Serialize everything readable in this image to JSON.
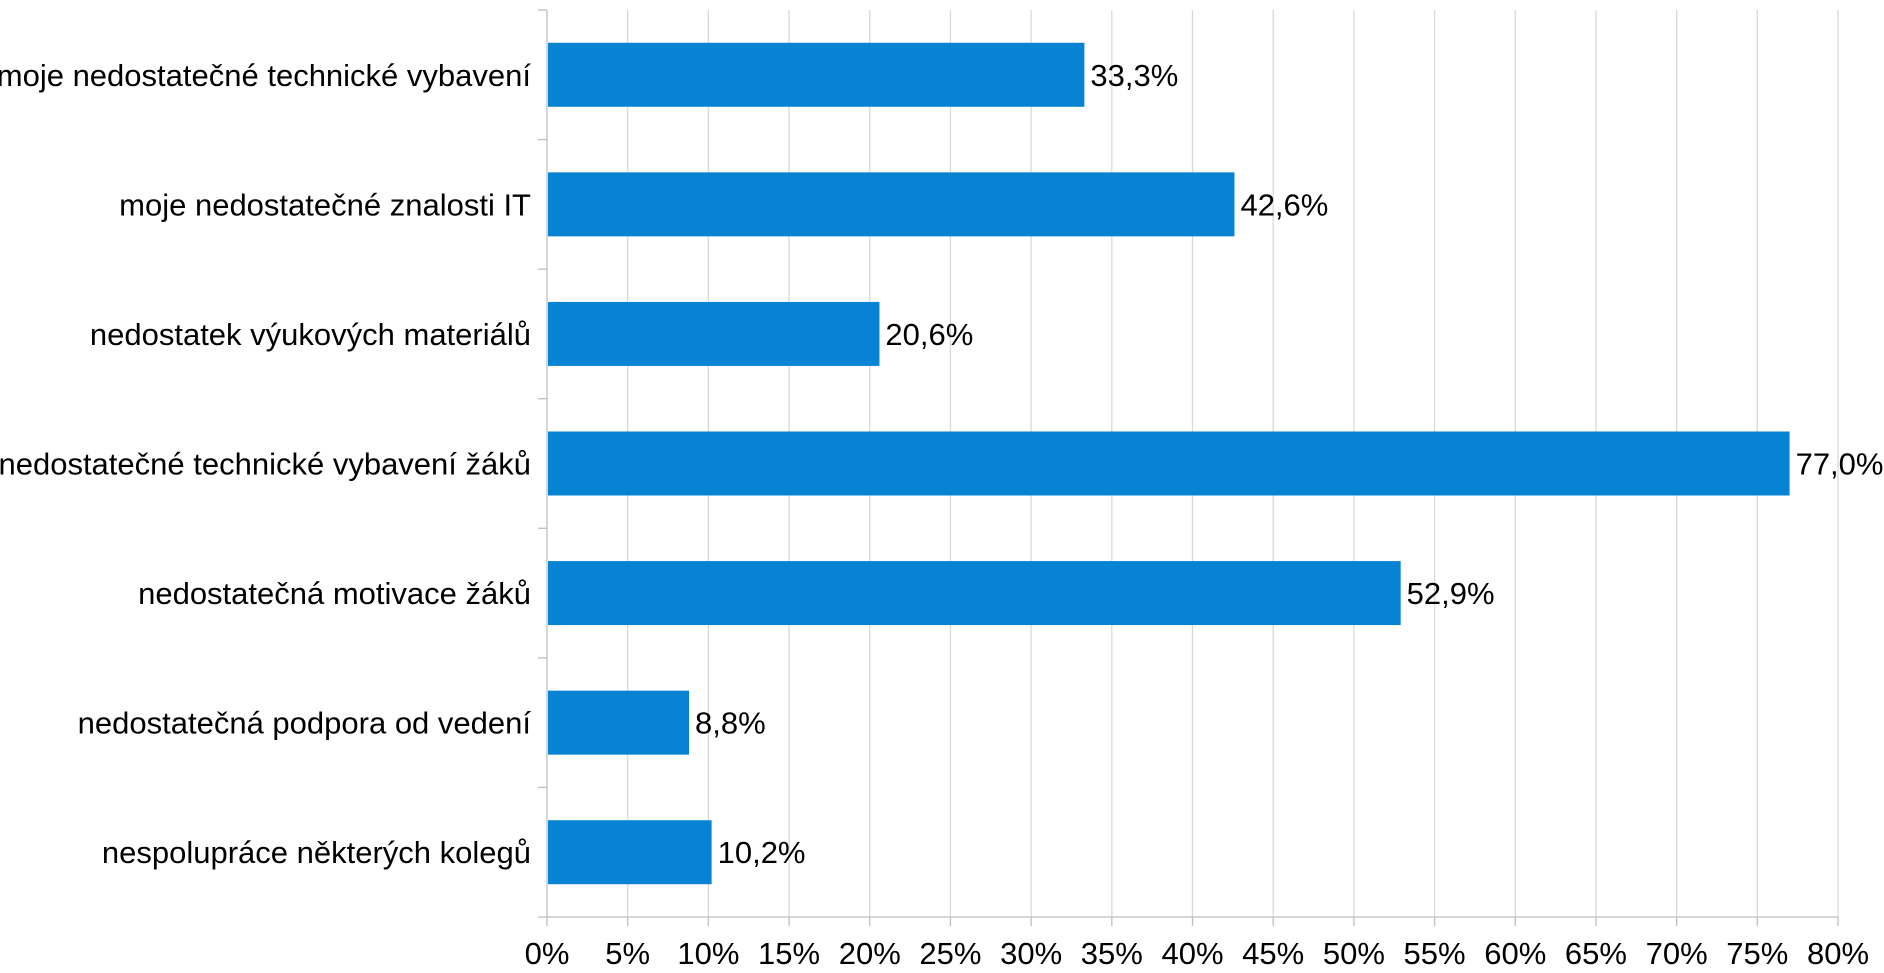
{
  "chart_data": {
    "type": "bar",
    "orientation": "horizontal",
    "title": "",
    "xlabel": "",
    "ylabel": "",
    "categories": [
      "moje nedostatečné technické vybavení",
      "moje nedostatečné znalosti IT",
      "nedostatek výukových materiálů",
      "nedostatečné technické vybavení žáků",
      "nedostatečná motivace žáků",
      "nedostatečná podpora od vedení",
      "nespolupráce některých kolegů"
    ],
    "values": [
      33.3,
      42.6,
      20.6,
      77.0,
      52.9,
      8.8,
      10.2
    ],
    "data_labels": [
      "33,3%",
      "42,6%",
      "20,6%",
      "77,0%",
      "52,9%",
      "8,8%",
      "10,2%"
    ],
    "xlim": [
      0,
      80
    ],
    "x_ticks": [
      0,
      5,
      10,
      15,
      20,
      25,
      30,
      35,
      40,
      45,
      50,
      55,
      60,
      65,
      70,
      75,
      80
    ],
    "x_tick_labels": [
      "0%",
      "5%",
      "10%",
      "15%",
      "20%",
      "25%",
      "30%",
      "35%",
      "40%",
      "45%",
      "50%",
      "55%",
      "60%",
      "65%",
      "70%",
      "75%",
      "80%"
    ],
    "bar_color": "#0783d4",
    "grid": "vertical",
    "legend": "none"
  }
}
